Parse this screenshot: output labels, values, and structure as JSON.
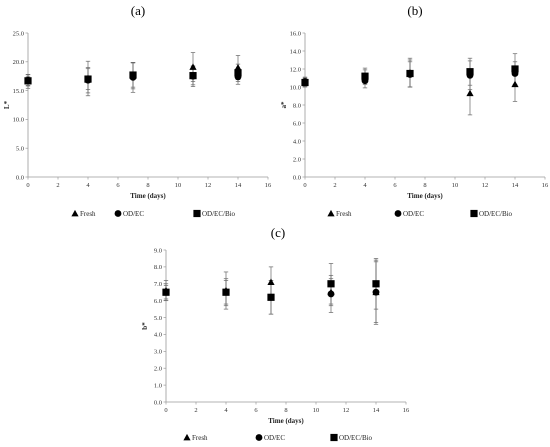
{
  "figure": {
    "colors": {
      "marker": "#000000",
      "axis": "#9a9a9a",
      "errorbar": "#666666"
    },
    "legend_series": [
      {
        "name": "Fresh",
        "marker": "triangle"
      },
      {
        "name": "OD/EC",
        "marker": "circle"
      },
      {
        "name": "OD/EC/Bio",
        "marker": "square"
      }
    ]
  },
  "chart_data": [
    {
      "type": "scatter",
      "panel_label": "(a)",
      "xlabel": "Time (days)",
      "ylabel": "L*",
      "xlim": [
        0,
        16
      ],
      "ylim": [
        0,
        25
      ],
      "xticks": [
        0,
        2,
        4,
        6,
        8,
        10,
        12,
        14,
        16
      ],
      "xtick_labels": [
        "0",
        "2",
        "4",
        "6",
        "8",
        "10",
        "12",
        "14",
        "16"
      ],
      "yticks": [
        0,
        5,
        10,
        15,
        20,
        25
      ],
      "ytick_labels": [
        "0.0",
        "5.0",
        "10.0",
        "15.0",
        "20.0",
        "25.0"
      ],
      "grid": false,
      "legend": "bottom",
      "series": [
        {
          "name": "Fresh",
          "marker": "triangle",
          "x": [
            0,
            4,
            7,
            11,
            14
          ],
          "y": [
            16.6,
            17.1,
            17.6,
            19.1,
            19.0
          ],
          "err": [
            1.2,
            3.0,
            2.3,
            2.5,
            2.1
          ]
        },
        {
          "name": "OD/EC",
          "marker": "circle",
          "x": [
            0,
            4,
            7,
            11,
            14
          ],
          "y": [
            16.8,
            16.8,
            17.3,
            17.5,
            17.4
          ],
          "err": [
            1.0,
            2.2,
            2.6,
            1.8,
            1.3
          ]
        },
        {
          "name": "OD/EC/Bio",
          "marker": "square",
          "x": [
            0,
            4,
            7,
            11,
            14
          ],
          "y": [
            16.7,
            17.0,
            17.7,
            17.6,
            18.1
          ],
          "err": [
            0.8,
            1.8,
            2.1,
            1.6,
            1.5
          ]
        }
      ]
    },
    {
      "type": "scatter",
      "panel_label": "(b)",
      "xlabel": "Time (days)",
      "ylabel": "a*",
      "xlim": [
        0,
        16
      ],
      "ylim": [
        0,
        16
      ],
      "xticks": [
        0,
        2,
        4,
        6,
        8,
        10,
        12,
        14,
        16
      ],
      "xtick_labels": [
        "0",
        "2",
        "4",
        "6",
        "8",
        "10",
        "12",
        "14",
        "16"
      ],
      "yticks": [
        0,
        2,
        4,
        6,
        8,
        10,
        12,
        14,
        16
      ],
      "ytick_labels": [
        "0.0",
        "2.0",
        "4.0",
        "6.0",
        "8.0",
        "10.0",
        "12.0",
        "14.0",
        "16.0"
      ],
      "grid": false,
      "legend": "bottom",
      "series": [
        {
          "name": "Fresh",
          "marker": "triangle",
          "x": [
            0,
            4,
            7,
            11,
            14
          ],
          "y": [
            10.5,
            11.2,
            11.6,
            9.3,
            10.3
          ],
          "err": [
            0.5,
            0.9,
            1.6,
            2.4,
            1.9
          ]
        },
        {
          "name": "OD/EC",
          "marker": "circle",
          "x": [
            0,
            4,
            7,
            11,
            14
          ],
          "y": [
            10.6,
            10.7,
            11.4,
            11.3,
            11.5
          ],
          "err": [
            0.5,
            0.8,
            1.4,
            1.6,
            1.3
          ]
        },
        {
          "name": "OD/EC/Bio",
          "marker": "square",
          "x": [
            0,
            4,
            7,
            11,
            14
          ],
          "y": [
            10.5,
            11.2,
            11.5,
            11.7,
            12.0
          ],
          "err": [
            0.4,
            0.7,
            1.5,
            1.5,
            1.7
          ]
        }
      ]
    },
    {
      "type": "scatter",
      "panel_label": "(c)",
      "xlabel": "Time (days)",
      "ylabel": "b*",
      "xlim": [
        0,
        16
      ],
      "ylim": [
        0,
        9
      ],
      "xticks": [
        0,
        2,
        4,
        6,
        8,
        10,
        12,
        14,
        16
      ],
      "xtick_labels": [
        "0",
        "2",
        "4",
        "6",
        "8",
        "10",
        "12",
        "14",
        "16"
      ],
      "yticks": [
        0,
        1,
        2,
        3,
        4,
        5,
        6,
        7,
        8,
        9
      ],
      "ytick_labels": [
        "0.0",
        "1.0",
        "2.0",
        "3.0",
        "4.0",
        "5.0",
        "6.0",
        "7.0",
        "8.0",
        "9.0"
      ],
      "grid": false,
      "legend": "bottom",
      "series": [
        {
          "name": "Fresh",
          "marker": "triangle",
          "x": [
            0,
            4,
            7,
            11,
            14
          ],
          "y": [
            6.6,
            6.6,
            7.1,
            6.5,
            6.5
          ],
          "err": [
            0.6,
            1.1,
            0.9,
            0.8,
            1.8
          ]
        },
        {
          "name": "OD/EC",
          "marker": "circle",
          "x": [
            0,
            4,
            7,
            11,
            14
          ],
          "y": [
            6.5,
            6.5,
            6.2,
            6.4,
            6.5
          ],
          "err": [
            0.5,
            0.8,
            1.0,
            1.1,
            1.9
          ]
        },
        {
          "name": "OD/EC/Bio",
          "marker": "square",
          "x": [
            0,
            4,
            7,
            11,
            14
          ],
          "y": [
            6.5,
            6.5,
            6.2,
            7.0,
            7.0
          ],
          "err": [
            0.4,
            0.7,
            1.0,
            1.2,
            1.5
          ]
        }
      ]
    }
  ]
}
